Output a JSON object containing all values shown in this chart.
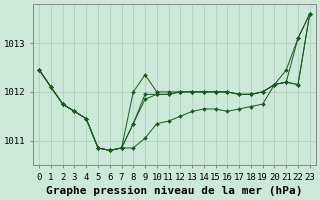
{
  "bg_color": "#cce8d8",
  "grid_color": "#aaccbb",
  "line_color": "#1a5c1a",
  "title": "Graphe pression niveau de la mer (hPa)",
  "xlim": [
    -0.5,
    23.5
  ],
  "ylim": [
    1010.5,
    1013.8
  ],
  "yticks": [
    1011,
    1012,
    1013
  ],
  "xticks": [
    0,
    1,
    2,
    3,
    4,
    5,
    6,
    7,
    8,
    9,
    10,
    11,
    12,
    13,
    14,
    15,
    16,
    17,
    18,
    19,
    20,
    21,
    22,
    23
  ],
  "series": [
    [
      1012.45,
      1012.1,
      1011.75,
      1011.6,
      1011.45,
      1010.85,
      1010.8,
      1010.85,
      1010.85,
      1011.05,
      1011.35,
      1011.4,
      1011.5,
      1011.6,
      1011.65,
      1011.65,
      1011.6,
      1011.65,
      1011.7,
      1011.75,
      1012.15,
      1012.45,
      1013.1,
      1013.6
    ],
    [
      1012.45,
      1012.1,
      1011.75,
      1011.6,
      1011.45,
      1010.85,
      1010.8,
      1010.85,
      1011.35,
      1011.85,
      1011.95,
      1011.95,
      1012.0,
      1012.0,
      1012.0,
      1012.0,
      1012.0,
      1011.95,
      1011.95,
      1012.0,
      1012.15,
      1012.2,
      1012.15,
      1013.6
    ],
    [
      1012.45,
      1012.1,
      1011.75,
      1011.6,
      1011.45,
      1010.85,
      1010.8,
      1010.85,
      1011.35,
      1011.95,
      1011.95,
      1011.95,
      1012.0,
      1012.0,
      1012.0,
      1012.0,
      1012.0,
      1011.95,
      1011.95,
      1012.0,
      1012.15,
      1012.2,
      1012.15,
      1013.6
    ],
    [
      1012.45,
      1012.1,
      1011.75,
      1011.6,
      1011.45,
      1010.85,
      1010.8,
      1010.85,
      1012.0,
      1012.35,
      1012.0,
      1012.0,
      1012.0,
      1012.0,
      1012.0,
      1012.0,
      1012.0,
      1011.95,
      1011.95,
      1012.0,
      1012.15,
      1012.2,
      1013.1,
      1013.6
    ]
  ],
  "title_fontsize": 8,
  "tick_fontsize": 6.5
}
